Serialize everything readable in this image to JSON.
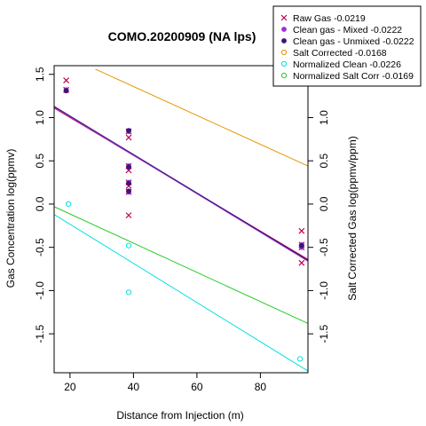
{
  "chart_data": {
    "type": "scatter",
    "title": "COMO.20200909 (NA lps)",
    "xlabel": "Distance from Injection (m)",
    "ylabel": "Gas Concentration log(ppmv)",
    "y2label": "Salt Corrected Gas log(ppmv/ppm)",
    "xlim": [
      15,
      95
    ],
    "ylim": [
      -1.95,
      1.6
    ],
    "x_ticks": [
      20,
      40,
      60,
      80
    ],
    "y_ticks": [
      -1.5,
      -1.0,
      -0.5,
      0.0,
      0.5,
      1.0,
      1.5
    ],
    "y_tick_labels": [
      "-1.5",
      "-1.0",
      "-0.5",
      "0.0",
      "0.5",
      "1.0",
      "1.5"
    ],
    "y2_ticks": [
      -1.5,
      -1.0,
      -0.5,
      0.0,
      0.5,
      1.0,
      1.5
    ],
    "y2_tick_labels": [
      "-1.5",
      "-1.0",
      "-0.5",
      "0.0",
      "0.5",
      "1.0",
      "1.5"
    ],
    "legend_position": "top-right",
    "grid": false,
    "series": [
      {
        "name": "Raw Gas -0.0219",
        "color": "#c0004e",
        "marker": "x",
        "points": [
          [
            18.8,
            1.43
          ],
          [
            18.8,
            1.32
          ],
          [
            38.5,
            0.84
          ],
          [
            38.5,
            0.77
          ],
          [
            38.5,
            0.44
          ],
          [
            38.5,
            0.39
          ],
          [
            38.5,
            0.25
          ],
          [
            38.5,
            0.21
          ],
          [
            38.5,
            0.14
          ],
          [
            38.5,
            -0.13
          ],
          [
            93,
            -0.31
          ],
          [
            93,
            -0.47
          ],
          [
            93,
            -0.5
          ],
          [
            93,
            -0.68
          ]
        ],
        "line": [
          [
            15,
            1.11
          ],
          [
            95,
            -0.64
          ]
        ]
      },
      {
        "name": "Clean gas - Mixed -0.0222",
        "color": "#9b30d6",
        "marker": "filled-circle",
        "points": [
          [
            18.8,
            1.32
          ],
          [
            38.5,
            0.84
          ],
          [
            38.5,
            0.44
          ],
          [
            38.5,
            0.25
          ],
          [
            38.5,
            0.14
          ],
          [
            93,
            -0.47
          ],
          [
            93,
            -0.5
          ]
        ],
        "line": [
          [
            15,
            1.12
          ],
          [
            95,
            -0.66
          ]
        ]
      },
      {
        "name": "Clean gas - Unmixed -0.0222",
        "color": "#3a1678",
        "marker": "filled-circle",
        "points": [
          [
            18.8,
            1.31
          ],
          [
            38.5,
            0.85
          ],
          [
            38.5,
            0.43
          ],
          [
            38.5,
            0.24
          ],
          [
            38.5,
            0.15
          ],
          [
            93,
            -0.48
          ]
        ],
        "line": [
          [
            15,
            1.13
          ],
          [
            95,
            -0.65
          ]
        ]
      },
      {
        "name": "Salt Corrected -0.0168",
        "color": "#e69500",
        "marker": "open-circle",
        "points": [],
        "line": [
          [
            28,
            1.56
          ],
          [
            95,
            0.44
          ]
        ]
      },
      {
        "name": "Normalized Clean -0.0226",
        "color": "#00e0e0",
        "marker": "open-circle",
        "points": [
          [
            19.5,
            0.0
          ],
          [
            38.5,
            -0.48
          ],
          [
            38.5,
            -1.02
          ],
          [
            92.5,
            -1.79
          ]
        ],
        "line": [
          [
            15,
            -0.12
          ],
          [
            95,
            -1.93
          ]
        ]
      },
      {
        "name": "Normalized Salt Corr -0.0169",
        "color": "#22cc22",
        "marker": "open-circle",
        "points": [],
        "line": [
          [
            15,
            -0.03
          ],
          [
            95,
            -1.38
          ]
        ]
      }
    ]
  }
}
